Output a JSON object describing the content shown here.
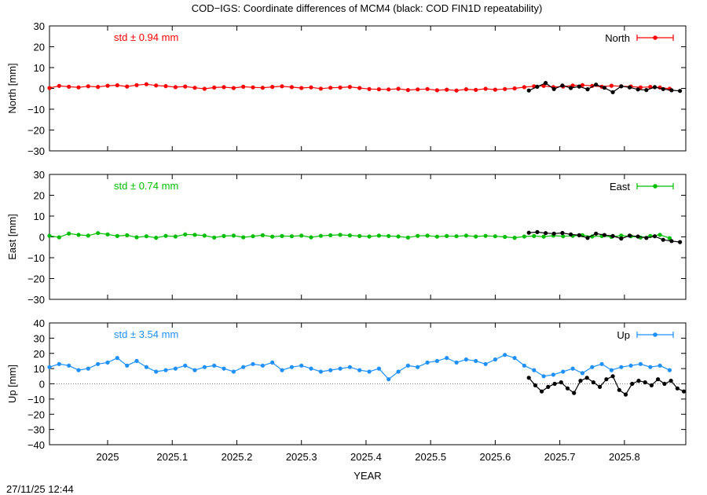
{
  "title": "COD−IGS: Coordinate differences of MCM4 (black: COD FIN1D repeatability)",
  "footer_timestamp": "27/11/25 12:44",
  "chart_data": [
    {
      "type": "line",
      "id": "north",
      "ylabel": "North [mm]",
      "xlabel": "",
      "legend": "North",
      "std_label": "std ± 0.94 mm",
      "color": "#ff0000",
      "xlim": [
        2024.91,
        2025.895
      ],
      "ylim": [
        -30,
        30
      ],
      "yticks": [
        -30,
        -20,
        -10,
        0,
        10,
        20,
        30
      ],
      "ytick_labels": [
        "−30",
        "−20",
        "−10",
        "0",
        "10",
        "20",
        "30"
      ],
      "zero_line": false,
      "series": [
        {
          "x": [
            2024.91,
            2024.925,
            2024.94,
            2024.955,
            2024.97,
            2024.985,
            2025.0,
            2025.015,
            2025.03,
            2025.045,
            2025.06,
            2025.075,
            2025.09,
            2025.105,
            2025.12,
            2025.135,
            2025.15,
            2025.165,
            2025.18,
            2025.195,
            2025.21,
            2025.225,
            2025.24,
            2025.255,
            2025.27,
            2025.285,
            2025.3,
            2025.315,
            2025.33,
            2025.345,
            2025.36,
            2025.375,
            2025.39,
            2025.405,
            2025.42,
            2025.435,
            2025.45,
            2025.465,
            2025.48,
            2025.495,
            2025.51,
            2025.525,
            2025.54,
            2025.555,
            2025.57,
            2025.585,
            2025.6,
            2025.615,
            2025.63,
            2025.645,
            2025.66,
            2025.675,
            2025.69,
            2025.705,
            2025.72,
            2025.735,
            2025.75,
            2025.765,
            2025.78,
            2025.795,
            2025.81,
            2025.825,
            2025.84,
            2025.855,
            2025.87
          ],
          "y": [
            0.2,
            1.2,
            0.8,
            0.5,
            1.0,
            0.7,
            1.3,
            1.5,
            0.9,
            1.6,
            2.0,
            1.4,
            1.1,
            0.6,
            0.9,
            0.3,
            -0.2,
            0.4,
            0.6,
            0.2,
            0.8,
            0.5,
            0.3,
            0.7,
            1.0,
            0.6,
            0.2,
            0.5,
            -0.1,
            0.3,
            0.4,
            0.7,
            0.2,
            -0.3,
            -0.4,
            -0.5,
            -0.2,
            -0.8,
            -0.5,
            -0.3,
            -0.9,
            -0.6,
            -1.0,
            -0.4,
            -0.7,
            -0.2,
            -0.6,
            -0.3,
            0.0,
            0.6,
            1.0,
            1.2,
            0.6,
            0.9,
            1.4,
            1.6,
            1.2,
            0.8,
            1.3,
            1.0,
            0.9,
            0.5,
            0.7,
            0.4,
            -0.2
          ]
        },
        {
          "x": [
            2025.652,
            2025.665,
            2025.678,
            2025.691,
            2025.704,
            2025.717,
            2025.73,
            2025.743,
            2025.756,
            2025.769,
            2025.782,
            2025.795,
            2025.808,
            2025.821,
            2025.834,
            2025.847,
            2025.86,
            2025.873,
            2025.886
          ],
          "y": [
            -1.0,
            0.8,
            2.6,
            -0.3,
            1.4,
            0.2,
            0.9,
            -0.4,
            1.8,
            0.3,
            -1.8,
            1.0,
            0.5,
            -0.5,
            -0.8,
            0.6,
            -0.3,
            -0.9,
            -1.2
          ]
        }
      ]
    },
    {
      "type": "line",
      "id": "east",
      "ylabel": "East [mm]",
      "xlabel": "",
      "legend": "East",
      "std_label": "std ± 0.74 mm",
      "color": "#00bf00",
      "xlim": [
        2024.91,
        2025.895
      ],
      "ylim": [
        -30,
        30
      ],
      "yticks": [
        -30,
        -20,
        -10,
        0,
        10,
        20,
        30
      ],
      "ytick_labels": [
        "−30",
        "−20",
        "−10",
        "0",
        "10",
        "20",
        "30"
      ],
      "zero_line": false,
      "series": [
        {
          "x": [
            2024.91,
            2024.925,
            2024.94,
            2024.955,
            2024.97,
            2024.985,
            2025.0,
            2025.015,
            2025.03,
            2025.045,
            2025.06,
            2025.075,
            2025.09,
            2025.105,
            2025.12,
            2025.135,
            2025.15,
            2025.165,
            2025.18,
            2025.195,
            2025.21,
            2025.225,
            2025.24,
            2025.255,
            2025.27,
            2025.285,
            2025.3,
            2025.315,
            2025.33,
            2025.345,
            2025.36,
            2025.375,
            2025.39,
            2025.405,
            2025.42,
            2025.435,
            2025.45,
            2025.465,
            2025.48,
            2025.495,
            2025.51,
            2025.525,
            2025.54,
            2025.555,
            2025.57,
            2025.585,
            2025.6,
            2025.615,
            2025.63,
            2025.645,
            2025.66,
            2025.675,
            2025.69,
            2025.705,
            2025.72,
            2025.735,
            2025.75,
            2025.765,
            2025.78,
            2025.795,
            2025.81,
            2025.825,
            2025.84,
            2025.855,
            2025.87
          ],
          "y": [
            0.5,
            -0.2,
            1.6,
            1.0,
            0.6,
            1.8,
            1.2,
            0.4,
            0.8,
            -0.2,
            0.3,
            -0.4,
            0.5,
            0.2,
            1.2,
            1.0,
            0.6,
            -0.3,
            0.4,
            0.6,
            -0.2,
            0.3,
            0.8,
            0.1,
            0.4,
            0.3,
            0.6,
            -0.2,
            0.5,
            0.8,
            1.0,
            0.7,
            0.4,
            0.2,
            0.6,
            0.4,
            0.2,
            -0.3,
            0.5,
            0.6,
            0.1,
            0.4,
            0.3,
            0.6,
            0.2,
            0.5,
            0.3,
            0.0,
            -0.4,
            0.2,
            0.4,
            0.1,
            0.6,
            0.3,
            0.5,
            0.8,
            0.2,
            0.4,
            0.0,
            0.6,
            0.3,
            -0.3,
            0.4,
            1.0,
            -0.6
          ]
        },
        {
          "x": [
            2025.652,
            2025.665,
            2025.678,
            2025.691,
            2025.704,
            2025.717,
            2025.73,
            2025.743,
            2025.756,
            2025.769,
            2025.782,
            2025.795,
            2025.808,
            2025.821,
            2025.834,
            2025.847,
            2025.86,
            2025.873,
            2025.886
          ],
          "y": [
            2.0,
            2.3,
            1.8,
            1.6,
            1.9,
            1.2,
            0.8,
            -0.5,
            1.6,
            0.9,
            0.4,
            -0.8,
            0.6,
            0.2,
            -0.5,
            0.3,
            -1.4,
            -2.0,
            -2.5
          ]
        }
      ]
    },
    {
      "type": "line",
      "id": "up",
      "ylabel": "Up [mm]",
      "xlabel": "YEAR",
      "legend": "Up",
      "std_label": "std ± 3.54 mm",
      "color": "#1e90ff",
      "xlim": [
        2024.91,
        2025.895
      ],
      "ylim": [
        -40,
        40
      ],
      "yticks": [
        -40,
        -30,
        -20,
        -10,
        0,
        10,
        20,
        30,
        40
      ],
      "ytick_labels": [
        "−40",
        "−30",
        "−20",
        "−10",
        "0",
        "10",
        "20",
        "30",
        "40"
      ],
      "xticks": [
        2025.0,
        2025.1,
        2025.2,
        2025.3,
        2025.4,
        2025.5,
        2025.6,
        2025.7,
        2025.8
      ],
      "xtick_labels": [
        "2025",
        "2025.1",
        "2025.2",
        "2025.3",
        "2025.4",
        "2025.5",
        "2025.6",
        "2025.7",
        "2025.8"
      ],
      "zero_line": true,
      "series": [
        {
          "x": [
            2024.91,
            2024.925,
            2024.94,
            2024.955,
            2024.97,
            2024.985,
            2025.0,
            2025.015,
            2025.03,
            2025.045,
            2025.06,
            2025.075,
            2025.09,
            2025.105,
            2025.12,
            2025.135,
            2025.15,
            2025.165,
            2025.18,
            2025.195,
            2025.21,
            2025.225,
            2025.24,
            2025.255,
            2025.27,
            2025.285,
            2025.3,
            2025.315,
            2025.33,
            2025.345,
            2025.36,
            2025.375,
            2025.39,
            2025.405,
            2025.42,
            2025.435,
            2025.45,
            2025.465,
            2025.48,
            2025.495,
            2025.51,
            2025.525,
            2025.54,
            2025.555,
            2025.57,
            2025.585,
            2025.6,
            2025.615,
            2025.63,
            2025.645,
            2025.66,
            2025.675,
            2025.69,
            2025.705,
            2025.72,
            2025.735,
            2025.75,
            2025.765,
            2025.78,
            2025.795,
            2025.81,
            2025.825,
            2025.84,
            2025.855,
            2025.87
          ],
          "y": [
            11,
            13,
            12,
            9,
            10,
            13,
            14,
            17,
            12,
            15,
            11,
            8,
            9,
            10,
            12,
            9,
            11,
            12,
            10,
            8,
            11,
            13,
            12,
            14,
            9,
            11,
            12,
            10,
            8,
            9,
            10,
            11,
            9,
            8,
            10,
            3,
            8,
            12,
            11,
            14,
            15,
            17,
            14,
            16,
            15,
            13,
            16,
            19,
            17,
            12,
            9,
            5,
            6,
            8,
            10,
            7,
            11,
            13,
            9,
            11,
            12,
            13,
            11,
            12,
            9
          ]
        },
        {
          "x": [
            2025.652,
            2025.662,
            2025.672,
            2025.682,
            2025.692,
            2025.702,
            2025.712,
            2025.722,
            2025.732,
            2025.742,
            2025.752,
            2025.762,
            2025.772,
            2025.782,
            2025.792,
            2025.802,
            2025.812,
            2025.822,
            2025.832,
            2025.842,
            2025.852,
            2025.862,
            2025.872,
            2025.882,
            2025.892
          ],
          "y": [
            4,
            -1,
            -5,
            -2,
            0,
            1,
            -3,
            -6,
            2,
            4,
            1,
            -2,
            3,
            5,
            -4,
            -7,
            0,
            2,
            1,
            -1,
            3,
            0,
            2,
            -3,
            -5
          ]
        }
      ]
    }
  ]
}
